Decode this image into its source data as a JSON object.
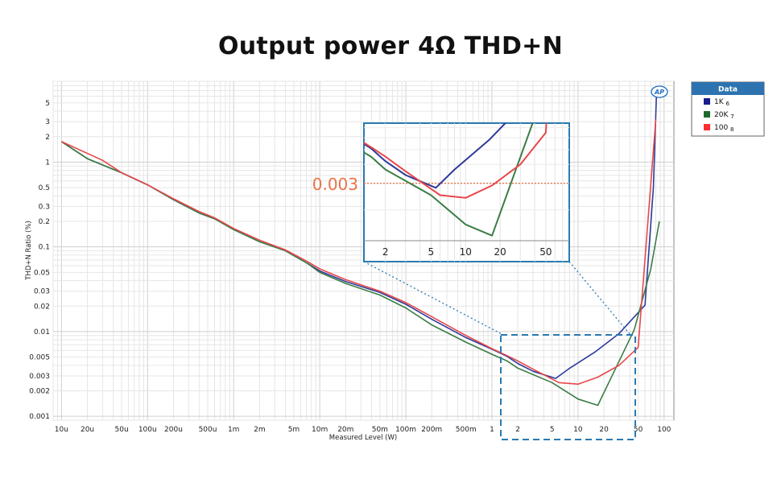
{
  "title": "Output power 4Ω THD+N",
  "chart_data": {
    "type": "line",
    "title": "Output power 4Ω THD+N",
    "xlabel": "Measured Level (W)",
    "ylabel": "THD+N Ratio (%)",
    "x_scale": "log",
    "y_scale": "log",
    "xlim": [
      8e-06,
      130
    ],
    "ylim": [
      0.0009,
      9
    ],
    "grid": true,
    "x_ticks": [
      {
        "v": 1e-05,
        "label": "10u"
      },
      {
        "v": 2e-05,
        "label": "20u"
      },
      {
        "v": 5e-05,
        "label": "50u"
      },
      {
        "v": 0.0001,
        "label": "100u"
      },
      {
        "v": 0.0002,
        "label": "200u"
      },
      {
        "v": 0.0005,
        "label": "500u"
      },
      {
        "v": 0.001,
        "label": "1m"
      },
      {
        "v": 0.002,
        "label": "2m"
      },
      {
        "v": 0.005,
        "label": "5m"
      },
      {
        "v": 0.01,
        "label": "10m"
      },
      {
        "v": 0.02,
        "label": "20m"
      },
      {
        "v": 0.05,
        "label": "50m"
      },
      {
        "v": 0.1,
        "label": "100m"
      },
      {
        "v": 0.2,
        "label": "200m"
      },
      {
        "v": 0.5,
        "label": "500m"
      },
      {
        "v": 1,
        "label": "1"
      },
      {
        "v": 2,
        "label": "2"
      },
      {
        "v": 5,
        "label": "5"
      },
      {
        "v": 10,
        "label": "10"
      },
      {
        "v": 20,
        "label": "20"
      },
      {
        "v": 50,
        "label": "50"
      },
      {
        "v": 100,
        "label": "100"
      }
    ],
    "y_ticks": [
      {
        "v": 5,
        "label": "5"
      },
      {
        "v": 3,
        "label": "3"
      },
      {
        "v": 2,
        "label": "2"
      },
      {
        "v": 1,
        "label": "1"
      },
      {
        "v": 0.5,
        "label": "0.5"
      },
      {
        "v": 0.3,
        "label": "0.3"
      },
      {
        "v": 0.2,
        "label": "0.2"
      },
      {
        "v": 0.1,
        "label": "0.1"
      },
      {
        "v": 0.05,
        "label": "0.05"
      },
      {
        "v": 0.03,
        "label": "0.03"
      },
      {
        "v": 0.02,
        "label": "0.02"
      },
      {
        "v": 0.01,
        "label": "0.01"
      },
      {
        "v": 0.005,
        "label": "0.005"
      },
      {
        "v": 0.003,
        "label": "0.003"
      },
      {
        "v": 0.002,
        "label": "0.002"
      },
      {
        "v": 0.001,
        "label": "0.001"
      }
    ],
    "legend": {
      "title": "Data",
      "position": "right-outside",
      "entries": [
        {
          "label": "1K",
          "sub": "6",
          "color": "#1a1a8c"
        },
        {
          "label": "20K",
          "sub": "7",
          "color": "#1e6b2e"
        },
        {
          "label": "100",
          "sub": "8",
          "color": "#ff2d2d"
        }
      ]
    },
    "series": [
      {
        "name": "1K",
        "color": "#2e3a9a",
        "points": [
          [
            1e-05,
            1.75
          ],
          [
            2e-05,
            1.1
          ],
          [
            5e-05,
            0.75
          ],
          [
            0.0001,
            0.54
          ],
          [
            0.0002,
            0.36
          ],
          [
            0.0004,
            0.25
          ],
          [
            0.0006,
            0.215
          ],
          [
            0.001,
            0.16
          ],
          [
            0.002,
            0.115
          ],
          [
            0.004,
            0.09
          ],
          [
            0.007,
            0.065
          ],
          [
            0.01,
            0.052
          ],
          [
            0.02,
            0.039
          ],
          [
            0.05,
            0.029
          ],
          [
            0.1,
            0.021
          ],
          [
            0.2,
            0.014
          ],
          [
            0.5,
            0.0085
          ],
          [
            1,
            0.0062
          ],
          [
            1.5,
            0.0051
          ],
          [
            2,
            0.0042
          ],
          [
            3,
            0.0034
          ],
          [
            5.5,
            0.0028
          ],
          [
            8,
            0.0037
          ],
          [
            16,
            0.0058
          ],
          [
            30,
            0.0095
          ],
          [
            60,
            0.0205
          ],
          [
            75,
            0.5
          ],
          [
            82,
            7.5
          ]
        ]
      },
      {
        "name": "20K",
        "color": "#3a7d44",
        "points": [
          [
            1e-05,
            1.75
          ],
          [
            2e-05,
            1.1
          ],
          [
            5e-05,
            0.75
          ],
          [
            0.0001,
            0.54
          ],
          [
            0.0002,
            0.36
          ],
          [
            0.0004,
            0.25
          ],
          [
            0.0006,
            0.215
          ],
          [
            0.001,
            0.16
          ],
          [
            0.002,
            0.115
          ],
          [
            0.004,
            0.09
          ],
          [
            0.007,
            0.065
          ],
          [
            0.01,
            0.05
          ],
          [
            0.02,
            0.037
          ],
          [
            0.05,
            0.027
          ],
          [
            0.1,
            0.019
          ],
          [
            0.2,
            0.012
          ],
          [
            0.5,
            0.0075
          ],
          [
            1,
            0.0054
          ],
          [
            1.5,
            0.0045
          ],
          [
            2,
            0.0037
          ],
          [
            5,
            0.0025
          ],
          [
            10,
            0.0016
          ],
          [
            17,
            0.00135
          ],
          [
            45,
            0.0105
          ],
          [
            70,
            0.055
          ],
          [
            88,
            0.2
          ]
        ]
      },
      {
        "name": "100",
        "color": "#e8474a",
        "points": [
          [
            1e-05,
            1.75
          ],
          [
            3e-05,
            1.05
          ],
          [
            5e-05,
            0.75
          ],
          [
            0.0001,
            0.54
          ],
          [
            0.0002,
            0.37
          ],
          [
            0.0004,
            0.26
          ],
          [
            0.0006,
            0.22
          ],
          [
            0.001,
            0.165
          ],
          [
            0.002,
            0.12
          ],
          [
            0.004,
            0.092
          ],
          [
            0.007,
            0.068
          ],
          [
            0.01,
            0.055
          ],
          [
            0.02,
            0.041
          ],
          [
            0.05,
            0.03
          ],
          [
            0.1,
            0.022
          ],
          [
            0.2,
            0.015
          ],
          [
            0.5,
            0.009
          ],
          [
            1,
            0.0063
          ],
          [
            1.5,
            0.0052
          ],
          [
            2,
            0.0045
          ],
          [
            3,
            0.0036
          ],
          [
            6,
            0.0025
          ],
          [
            10,
            0.0024
          ],
          [
            17,
            0.0029
          ],
          [
            30,
            0.004
          ],
          [
            50,
            0.0065
          ],
          [
            80,
            3.2
          ]
        ]
      }
    ],
    "annotations": [
      {
        "text": "0.003",
        "type": "reference-line",
        "y": 0.003,
        "color": "#e9744a"
      }
    ],
    "inset": {
      "description": "zoom",
      "xlim": [
        1.3,
        80
      ],
      "ylim": [
        0.00125,
        0.0075
      ],
      "x_ticks": [
        {
          "v": 2,
          "label": "2"
        },
        {
          "v": 5,
          "label": "5"
        },
        {
          "v": 10,
          "label": "10"
        },
        {
          "v": 20,
          "label": "20"
        },
        {
          "v": 50,
          "label": "50"
        }
      ]
    }
  }
}
